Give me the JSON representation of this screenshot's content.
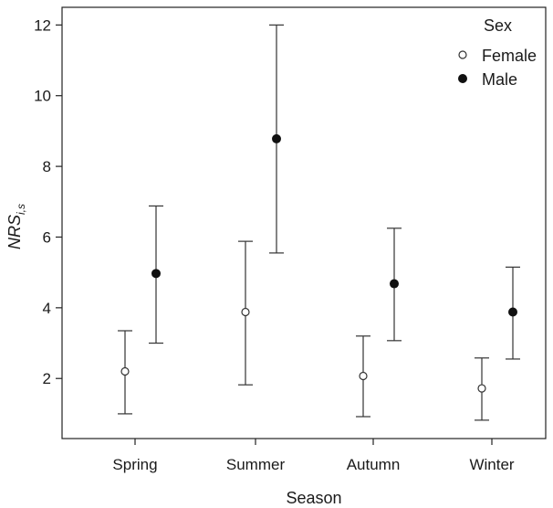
{
  "chart_data": {
    "type": "scatter",
    "categories": [
      "Spring",
      "Summer",
      "Autumn",
      "Winter"
    ],
    "xlabel": "Season",
    "ylabel": "NRS",
    "ylabel_subscript": "i,s",
    "ylim": [
      0.3,
      12.5
    ],
    "yticks": [
      2,
      4,
      6,
      8,
      10,
      12
    ],
    "grid": false,
    "legend": {
      "title": "Sex",
      "placement": "top-right"
    },
    "series": [
      {
        "name": "Female",
        "marker": "open-circle",
        "points": [
          {
            "x": "Spring",
            "y": 2.2,
            "lower": 1.0,
            "upper": 3.35
          },
          {
            "x": "Summer",
            "y": 3.88,
            "lower": 1.82,
            "upper": 5.88
          },
          {
            "x": "Autumn",
            "y": 2.07,
            "lower": 0.92,
            "upper": 3.2
          },
          {
            "x": "Winter",
            "y": 1.72,
            "lower": 0.82,
            "upper": 2.58
          }
        ]
      },
      {
        "name": "Male",
        "marker": "filled-circle",
        "points": [
          {
            "x": "Spring",
            "y": 4.97,
            "lower": 3.0,
            "upper": 6.88
          },
          {
            "x": "Summer",
            "y": 8.78,
            "lower": 5.55,
            "upper": 12.0
          },
          {
            "x": "Autumn",
            "y": 4.68,
            "lower": 3.07,
            "upper": 6.25
          },
          {
            "x": "Winter",
            "y": 3.88,
            "lower": 2.55,
            "upper": 5.15
          }
        ]
      }
    ]
  }
}
